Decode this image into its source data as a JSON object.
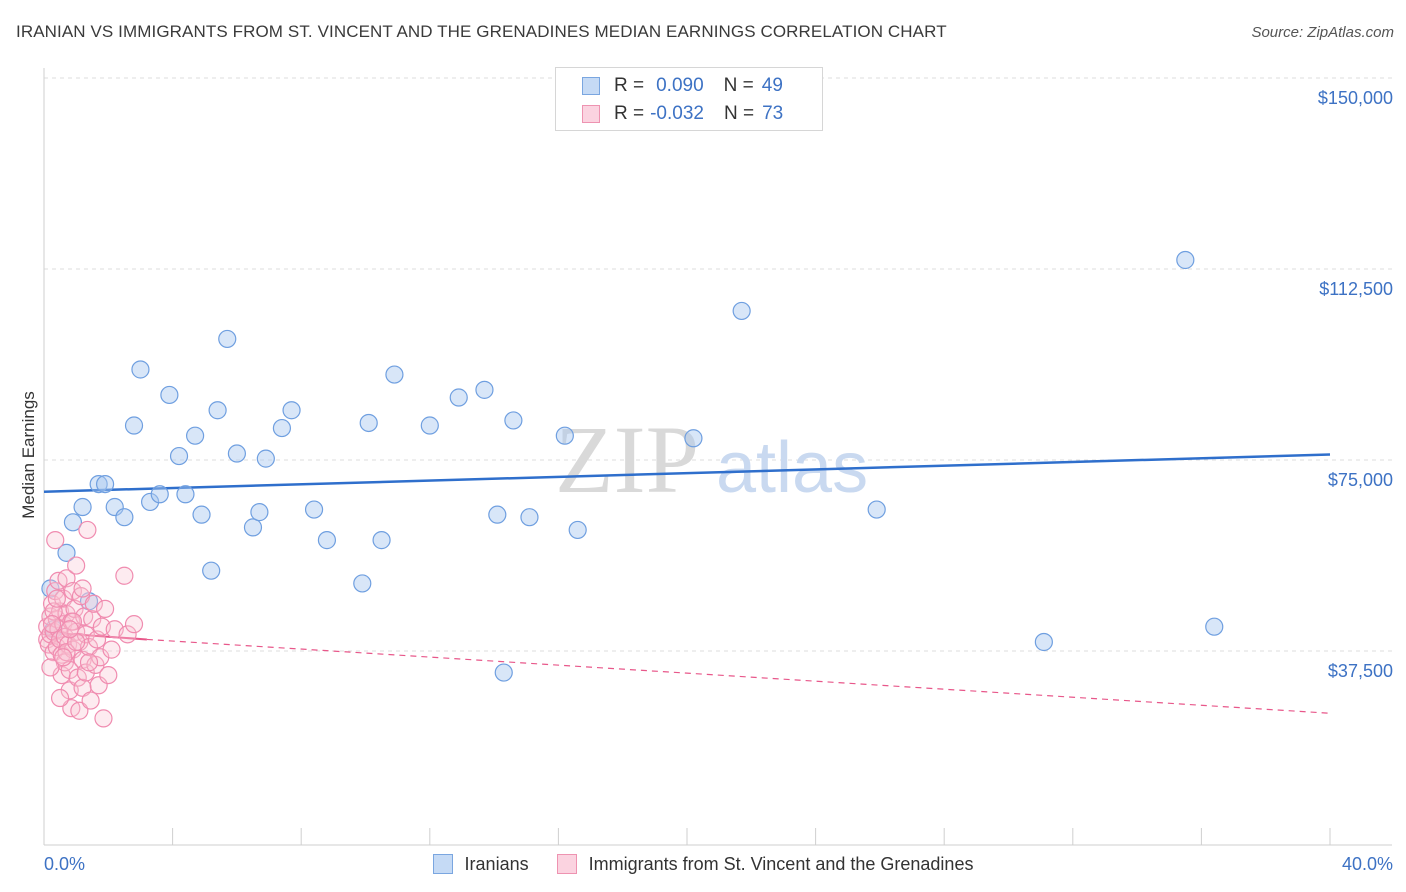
{
  "title": "IRANIAN VS IMMIGRANTS FROM ST. VINCENT AND THE GRENADINES MEDIAN EARNINGS CORRELATION CHART",
  "source": "Source: ZipAtlas.com",
  "watermark": {
    "zip": "ZIP",
    "atlas": "atlas"
  },
  "legend_top": [
    {
      "r_label": "R =",
      "r_value": "0.090",
      "n_label": "N =",
      "n_value": "49",
      "color": "#a9c8f0",
      "border": "#7aa6e0"
    },
    {
      "r_label": "R =",
      "r_value": "-0.032",
      "n_label": "N =",
      "n_value": "73",
      "color": "#f9c5d5",
      "border": "#ee93b1"
    }
  ],
  "legend_bottom": [
    {
      "label": "Iranians",
      "color": "#a9c8f0",
      "border": "#7aa6e0"
    },
    {
      "label": "Immigrants from St. Vincent and the Grenadines",
      "color": "#f9c5d5",
      "border": "#ee93b1"
    }
  ],
  "chart_data": {
    "type": "scatter",
    "title": "IRANIAN VS IMMIGRANTS FROM ST. VINCENT AND THE GRENADINES MEDIAN EARNINGS CORRELATION CHART",
    "xlabel": "",
    "ylabel": "Median Earnings",
    "xlim": [
      0,
      40
    ],
    "ylim": [
      0,
      152000
    ],
    "x_tick_labels": [
      "0.0%",
      "40.0%"
    ],
    "y_ticks": [
      37500,
      75000,
      112500,
      150000
    ],
    "y_tick_labels": [
      "$37,500",
      "$75,000",
      "$112,500",
      "$150,000"
    ],
    "grid": true,
    "legend_position": "top-center",
    "series": [
      {
        "name": "Iranians",
        "color": "#6f9fe0",
        "trend": {
          "x": [
            0,
            40
          ],
          "y": [
            72500,
            79800
          ],
          "style": "solid",
          "color": "#2f6fcc"
        },
        "points": [
          [
            0.2,
            53500
          ],
          [
            0.7,
            60500
          ],
          [
            0.9,
            66500
          ],
          [
            1.2,
            69500
          ],
          [
            1.7,
            74000
          ],
          [
            1.9,
            74000
          ],
          [
            2.2,
            69500
          ],
          [
            2.5,
            67500
          ],
          [
            2.8,
            85500
          ],
          [
            3.0,
            96500
          ],
          [
            3.3,
            70500
          ],
          [
            3.6,
            72000
          ],
          [
            3.9,
            91500
          ],
          [
            4.2,
            79500
          ],
          [
            4.4,
            72000
          ],
          [
            4.7,
            83500
          ],
          [
            4.9,
            68000
          ],
          [
            5.2,
            57000
          ],
          [
            5.4,
            88500
          ],
          [
            5.7,
            102500
          ],
          [
            6.0,
            80000
          ],
          [
            6.5,
            65500
          ],
          [
            6.7,
            68500
          ],
          [
            6.9,
            79000
          ],
          [
            7.4,
            85000
          ],
          [
            7.7,
            88500
          ],
          [
            8.4,
            69000
          ],
          [
            8.8,
            63000
          ],
          [
            9.9,
            54500
          ],
          [
            10.1,
            86000
          ],
          [
            10.5,
            63000
          ],
          [
            10.9,
            95500
          ],
          [
            12.0,
            85500
          ],
          [
            12.9,
            91000
          ],
          [
            13.7,
            92500
          ],
          [
            14.1,
            68000
          ],
          [
            14.3,
            37000
          ],
          [
            14.6,
            86500
          ],
          [
            15.1,
            67500
          ],
          [
            16.2,
            83500
          ],
          [
            16.6,
            65000
          ],
          [
            20.2,
            83000
          ],
          [
            21.7,
            108000
          ],
          [
            25.9,
            69000
          ],
          [
            31.1,
            43000
          ],
          [
            35.5,
            118000
          ],
          [
            36.4,
            46000
          ],
          [
            0.3,
            45500
          ],
          [
            1.4,
            51000
          ]
        ]
      },
      {
        "name": "Immigrants from St. Vincent and the Grenadines",
        "color": "#f08cb0",
        "trend": {
          "x": [
            0,
            3.2,
            40
          ],
          "y": [
            44900,
            43500,
            29000
          ],
          "style": "solid-then-dashed",
          "color": "#e8578a"
        },
        "points": [
          [
            0.1,
            43500
          ],
          [
            0.1,
            46000
          ],
          [
            0.15,
            42500
          ],
          [
            0.2,
            48000
          ],
          [
            0.2,
            44500
          ],
          [
            0.25,
            50500
          ],
          [
            0.3,
            41000
          ],
          [
            0.3,
            45000
          ],
          [
            0.35,
            63000
          ],
          [
            0.35,
            53000
          ],
          [
            0.4,
            47500
          ],
          [
            0.4,
            42000
          ],
          [
            0.45,
            55000
          ],
          [
            0.45,
            45500
          ],
          [
            0.5,
            49000
          ],
          [
            0.5,
            43500
          ],
          [
            0.55,
            40500
          ],
          [
            0.55,
            36500
          ],
          [
            0.6,
            51500
          ],
          [
            0.6,
            46500
          ],
          [
            0.65,
            44000
          ],
          [
            0.65,
            39000
          ],
          [
            0.7,
            55500
          ],
          [
            0.7,
            48500
          ],
          [
            0.75,
            42500
          ],
          [
            0.8,
            33500
          ],
          [
            0.8,
            37500
          ],
          [
            0.85,
            47000
          ],
          [
            0.85,
            30000
          ],
          [
            0.9,
            53000
          ],
          [
            0.9,
            41500
          ],
          [
            0.95,
            49500
          ],
          [
            1.0,
            58000
          ],
          [
            1.0,
            45000
          ],
          [
            1.05,
            36000
          ],
          [
            1.1,
            43000
          ],
          [
            1.1,
            29500
          ],
          [
            1.15,
            52000
          ],
          [
            1.2,
            39500
          ],
          [
            1.2,
            34000
          ],
          [
            1.25,
            48000
          ],
          [
            1.3,
            44500
          ],
          [
            1.3,
            37000
          ],
          [
            1.35,
            65000
          ],
          [
            1.4,
            42000
          ],
          [
            1.45,
            31500
          ],
          [
            1.5,
            47500
          ],
          [
            1.55,
            50500
          ],
          [
            1.6,
            38500
          ],
          [
            1.65,
            43500
          ],
          [
            1.7,
            34500
          ],
          [
            1.75,
            40000
          ],
          [
            1.8,
            46000
          ],
          [
            1.85,
            28000
          ],
          [
            1.9,
            49500
          ],
          [
            2.0,
            36500
          ],
          [
            2.1,
            41500
          ],
          [
            2.2,
            45500
          ],
          [
            2.5,
            56000
          ],
          [
            2.6,
            44500
          ],
          [
            2.8,
            46500
          ],
          [
            0.2,
            38000
          ],
          [
            0.3,
            49000
          ],
          [
            0.5,
            32000
          ],
          [
            0.7,
            41000
          ],
          [
            0.9,
            47000
          ],
          [
            1.0,
            43000
          ],
          [
            1.2,
            53500
          ],
          [
            0.4,
            51500
          ],
          [
            0.6,
            40000
          ],
          [
            0.8,
            45500
          ],
          [
            1.4,
            39000
          ],
          [
            0.25,
            46500
          ]
        ]
      }
    ]
  }
}
